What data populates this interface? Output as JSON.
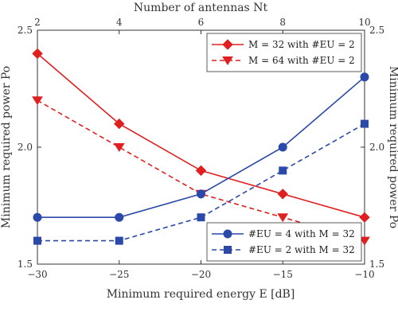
{
  "chart_data": {
    "type": "line",
    "bottom_axis": {
      "label": "Minimum required energy E [dB]",
      "ticks": [
        "−30",
        "−25",
        "−20",
        "−15",
        "−10"
      ],
      "range": [
        -30,
        -10
      ]
    },
    "top_axis": {
      "label": "Number of antennas Nt",
      "ticks": [
        "2",
        "4",
        "6",
        "8",
        "10"
      ],
      "range": [
        2,
        10
      ]
    },
    "left_axis": {
      "label": "Minimum required power Po",
      "ticks": [
        "1.5",
        "2.0",
        "2.5"
      ],
      "range": [
        1.5,
        2.5
      ]
    },
    "right_axis": {
      "label": "Minimum required power Po",
      "ticks": [
        "1.5",
        "2.0",
        "2.5"
      ],
      "range": [
        1.5,
        2.5
      ]
    },
    "grid": false,
    "series": [
      {
        "name": "M = 32 with #EU = 2",
        "axis": "top",
        "color": "#e02020",
        "dash": "solid",
        "marker": "diamond",
        "x": [
          2,
          4,
          6,
          8,
          10
        ],
        "y": [
          2.4,
          2.1,
          1.9,
          1.8,
          1.7
        ]
      },
      {
        "name": "M = 64 with #EU = 2",
        "axis": "top",
        "color": "#e02020",
        "dash": "dashed",
        "marker": "triangle-down",
        "x": [
          2,
          4,
          6,
          8,
          10
        ],
        "y": [
          2.2,
          2.0,
          1.8,
          1.7,
          1.6
        ]
      },
      {
        "name": "#EU = 4 with M = 32",
        "axis": "bottom",
        "color": "#2a49a8",
        "dash": "solid",
        "marker": "circle",
        "x": [
          -30,
          -25,
          -20,
          -15,
          -10
        ],
        "y": [
          1.7,
          1.7,
          1.8,
          2.0,
          2.3
        ]
      },
      {
        "name": "#EU = 2 with M = 32",
        "axis": "bottom",
        "color": "#2a49a8",
        "dash": "dashed",
        "marker": "square",
        "x": [
          -30,
          -25,
          -20,
          -15,
          -10
        ],
        "y": [
          1.6,
          1.6,
          1.7,
          1.9,
          2.1
        ]
      }
    ],
    "legends": [
      {
        "placement": "top-right",
        "series": [
          0,
          1
        ]
      },
      {
        "placement": "bottom-right",
        "series": [
          2,
          3
        ]
      }
    ]
  }
}
